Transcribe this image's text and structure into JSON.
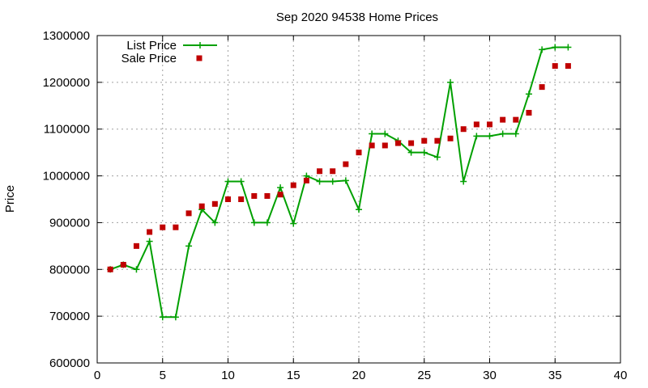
{
  "chart_data": {
    "type": "line",
    "title": "Sep 2020 94538 Home Prices",
    "xlabel": "",
    "ylabel": "Price",
    "xlim": [
      0,
      40
    ],
    "ylim": [
      600000,
      1300000
    ],
    "xticks": [
      0,
      5,
      10,
      15,
      20,
      25,
      30,
      35,
      40
    ],
    "yticks": [
      600000,
      700000,
      800000,
      900000,
      1000000,
      1100000,
      1200000,
      1300000
    ],
    "grid": true,
    "legend_position": "top-left",
    "x": [
      1,
      2,
      3,
      4,
      5,
      6,
      7,
      8,
      9,
      10,
      11,
      12,
      13,
      14,
      15,
      16,
      17,
      18,
      19,
      20,
      21,
      22,
      23,
      24,
      25,
      26,
      27,
      28,
      29,
      30,
      31,
      32,
      33,
      34,
      35,
      36
    ],
    "series": [
      {
        "name": "List Price",
        "style": "line-points",
        "marker": "plus",
        "color": "#00a000",
        "values": [
          800000,
          810000,
          800000,
          860000,
          698000,
          698000,
          850000,
          928000,
          900000,
          988000,
          988000,
          900000,
          900000,
          975000,
          898000,
          1000000,
          988000,
          988000,
          990000,
          928000,
          1090000,
          1090000,
          1075000,
          1050000,
          1050000,
          1040000,
          1200000,
          988000,
          1085000,
          1085000,
          1090000,
          1090000,
          1175000,
          1270000,
          1275000,
          1275000
        ]
      },
      {
        "name": "Sale Price",
        "style": "points",
        "marker": "square",
        "color": "#c00000",
        "values": [
          800000,
          810000,
          850000,
          880000,
          890000,
          890000,
          920000,
          935000,
          940000,
          950000,
          950000,
          957000,
          957000,
          960000,
          980000,
          990000,
          1010000,
          1010000,
          1025000,
          1050000,
          1065000,
          1065000,
          1070000,
          1070000,
          1075000,
          1075000,
          1080000,
          1100000,
          1110000,
          1110000,
          1120000,
          1120000,
          1135000,
          1190000,
          1235000,
          1235000
        ]
      }
    ]
  }
}
